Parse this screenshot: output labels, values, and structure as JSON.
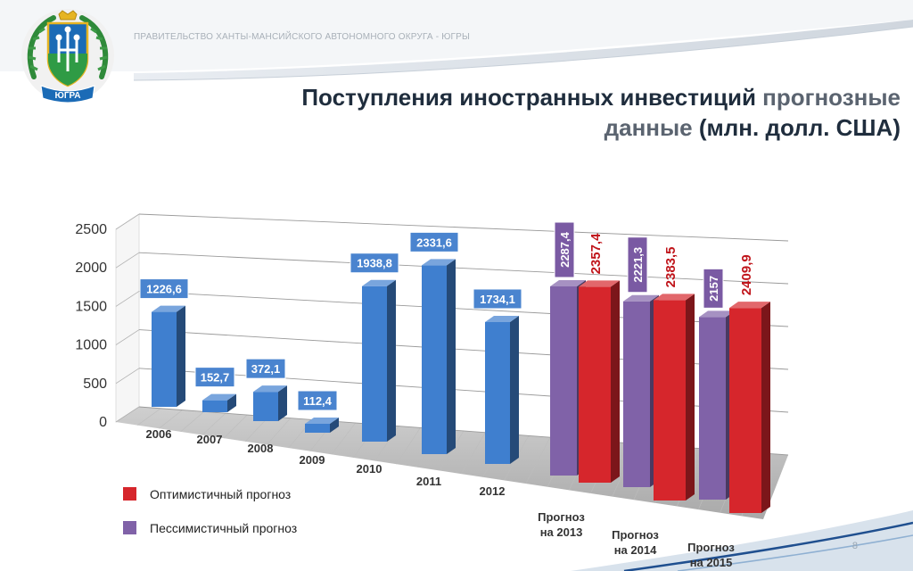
{
  "header": {
    "org_name": "ПРАВИТЕЛЬСТВО ХАНТЫ-МАНСИЙСКОГО АВТОНОМНОГО ОКРУГА - ЮГРЫ",
    "emblem_text": "ЮГРА"
  },
  "title": {
    "part1": "Поступления иностранных инвестиций ",
    "part2": "прогнозные",
    "part3": "данные",
    "part4": " (млн. долл. США)"
  },
  "page_number": "8",
  "colors": {
    "blue": "#3f7fcf",
    "purple": "#8062a8",
    "red": "#d6262c",
    "red_label": "#c0151b"
  },
  "chart_data": {
    "type": "bar",
    "ylim": [
      0,
      2500
    ],
    "yticks": [
      "0",
      "500",
      "1000",
      "1500",
      "2000",
      "2500"
    ],
    "grid": true,
    "legend_position": "bottom-left",
    "historical": {
      "categories": [
        "2006",
        "2007",
        "2008",
        "2009",
        "2010",
        "2011",
        "2012"
      ],
      "values": [
        1226.6,
        152.7,
        372.1,
        112.4,
        1938.8,
        2331.6,
        1734.1
      ],
      "labels": [
        "1226,6",
        "152,7",
        "372,1",
        "112,4",
        "1938,8",
        "2331,6",
        "1734,1"
      ]
    },
    "forecast": {
      "categories": [
        [
          "Прогноз",
          "на 2013"
        ],
        [
          "Прогноз",
          "на 2014"
        ],
        [
          "Прогноз",
          "на 2015"
        ]
      ],
      "series": [
        {
          "name": "Пессимистичный прогноз",
          "values": [
            2287.4,
            2221.3,
            2157
          ],
          "labels": [
            "2287,4",
            "2221,3",
            "2157"
          ]
        },
        {
          "name": "Оптимистичный прогноз",
          "values": [
            2357.4,
            2383.5,
            2409.9
          ],
          "labels": [
            "2357,4",
            "2383,5",
            "2409,9"
          ]
        }
      ]
    },
    "legend": [
      "Оптимистичный прогноз",
      "Пессимистичный прогноз"
    ]
  }
}
